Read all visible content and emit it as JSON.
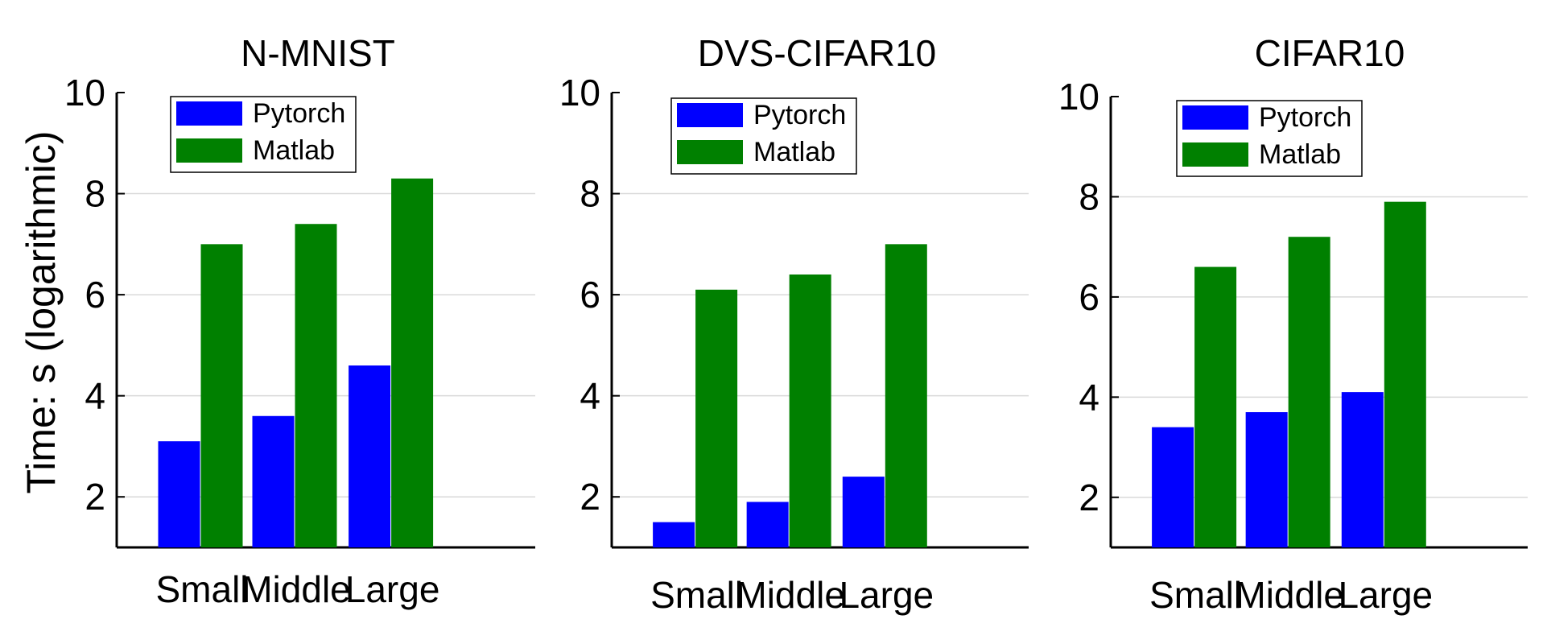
{
  "figure": {
    "ylabel": "Time: s (logarithmic)"
  },
  "colors": {
    "pytorch": "#0000ff",
    "matlab": "#008000",
    "grid": "#d9d9d9",
    "axis": "#000000"
  },
  "chart_data": [
    {
      "type": "bar",
      "title": "N-MNIST",
      "categories": [
        "Small",
        "Middle",
        "Large"
      ],
      "series": [
        {
          "name": "Pytorch",
          "values": [
            3.1,
            3.6,
            4.6
          ]
        },
        {
          "name": "Matlab",
          "values": [
            7.0,
            7.4,
            8.3
          ]
        }
      ],
      "ylabel": "Time: s (logarithmic)",
      "ylim": [
        1,
        10
      ],
      "yticks": [
        "2",
        "4",
        "6",
        "8",
        "10"
      ],
      "grid": true,
      "legend": "top-left"
    },
    {
      "type": "bar",
      "title": "DVS-CIFAR10",
      "categories": [
        "Small",
        "Middle",
        "Large"
      ],
      "series": [
        {
          "name": "Pytorch",
          "values": [
            1.5,
            1.9,
            2.4
          ]
        },
        {
          "name": "Matlab",
          "values": [
            6.1,
            6.4,
            7.0
          ]
        }
      ],
      "ylabel": "",
      "ylim": [
        1,
        10
      ],
      "yticks": [
        "2",
        "4",
        "6",
        "8",
        "10"
      ],
      "grid": true,
      "legend": "top-left"
    },
    {
      "type": "bar",
      "title": "CIFAR10",
      "categories": [
        "Small",
        "Middle",
        "Large"
      ],
      "series": [
        {
          "name": "Pytorch",
          "values": [
            3.4,
            3.7,
            4.1
          ]
        },
        {
          "name": "Matlab",
          "values": [
            6.6,
            7.2,
            7.9
          ]
        }
      ],
      "ylabel": "",
      "ylim": [
        1,
        10
      ],
      "yticks": [
        "2",
        "4",
        "6",
        "8",
        "10"
      ],
      "grid": true,
      "legend": "top-left"
    }
  ]
}
